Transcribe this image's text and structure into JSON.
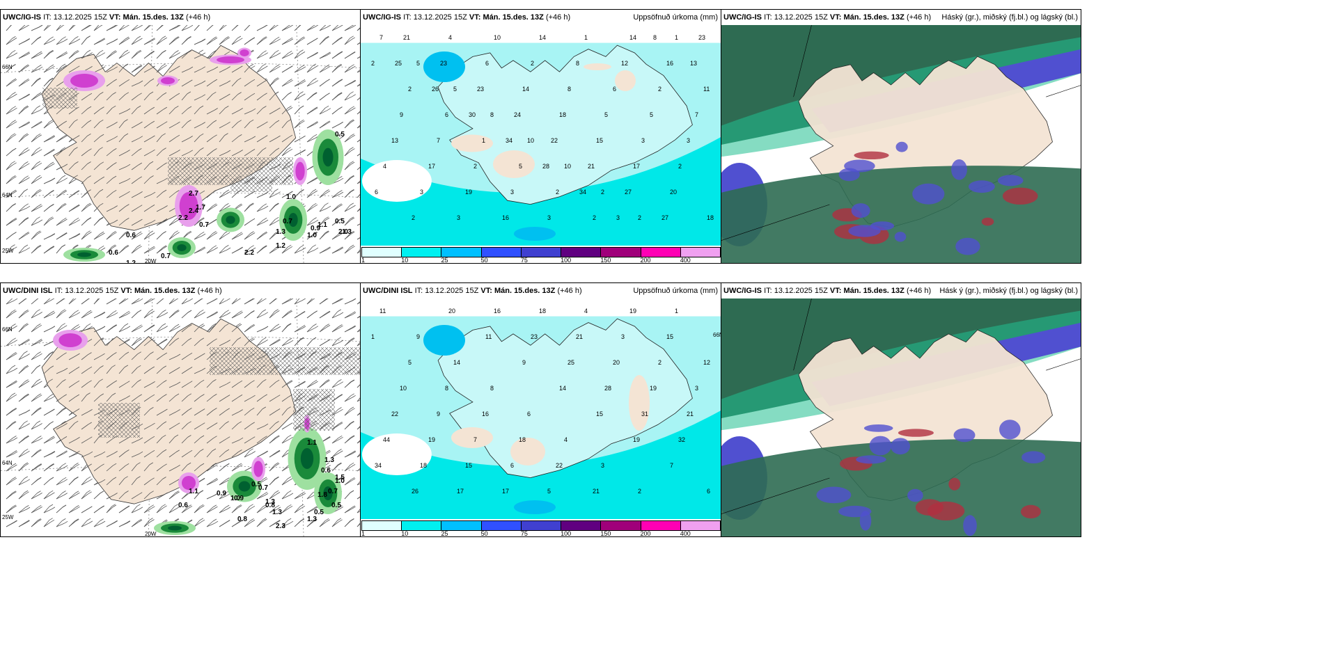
{
  "panels": [
    {
      "id": "p1",
      "model": "UWC/IG-IS",
      "it_label": "IT:",
      "it": "13.12.2025 15Z",
      "vt_label": "VT:",
      "vt": "Mán. 15.des. 13Z",
      "lead": "(+46 h)",
      "right": ""
    },
    {
      "id": "p2",
      "model": "UWC/IG-IS",
      "it_label": "IT:",
      "it": "13.12.2025 15Z",
      "vt_label": "VT:",
      "vt": "Mán. 15.des. 13Z",
      "lead": "(+46 h)",
      "right": "Uppsöfnuð úrkoma (mm)"
    },
    {
      "id": "p3",
      "model": "UWC/IG-IS",
      "it_label": "IT:",
      "it": "13.12.2025 15Z",
      "vt_label": "VT:",
      "vt": "Mán. 15.des. 13Z",
      "lead": "(+46 h)",
      "right": "Háský (gr.), miðský (fj.bl.) og lágský (bl.)"
    },
    {
      "id": "p4",
      "model": "UWC/DINI ISL",
      "it_label": "IT:",
      "it": "13.12.2025 15Z",
      "vt_label": "VT:",
      "vt": "Mán. 15.des. 13Z",
      "lead": "(+46 h)",
      "right": ""
    },
    {
      "id": "p5",
      "model": "UWC/DINI ISL",
      "it_label": "IT:",
      "it": "13.12.2025 15Z",
      "vt_label": "VT:",
      "vt": "Mán. 15.des. 13Z",
      "lead": "(+46 h)",
      "right": "Uppsöfnuð úrkoma (mm)"
    },
    {
      "id": "p6",
      "model": "UWC/IG-IS",
      "it_label": "IT:",
      "it": "13.12.2025 15Z",
      "vt_label": "VT:",
      "vt": "Mán. 15.des. 13Z",
      "lead": "(+46 h)",
      "right": "Hásk ý (gr.), miðský (fj.bl.) og lágský (bl.)"
    }
  ],
  "axis_labels": {
    "lat66": "66N",
    "lat64": "64N",
    "lon20": "20W",
    "lon25": "25W"
  },
  "colorbar": {
    "ticks": [
      "1",
      "10",
      "25",
      "50",
      "75",
      "100",
      "150",
      "200",
      "400"
    ],
    "colors": [
      "#e0ffff",
      "#00f0f0",
      "#00c0ff",
      "#3050ff",
      "#4040d0",
      "#600080",
      "#a0007a",
      "#ff00b4",
      "#f0a0f0"
    ]
  },
  "colors": {
    "land": "#f4e4d4",
    "precip_bg": "#a8f4f4",
    "precip_mid": "#00e8e8",
    "precip_hi": "#00c0f0",
    "snow": "#d040d0",
    "rain_green": "#006030",
    "high_cloud": "#2e6b52",
    "mid_cloud": "#5050d0",
    "low_cloud": "#20c090"
  },
  "precip_values_top": [
    "7",
    "5",
    "5",
    "8",
    "10",
    "10",
    "2",
    "2",
    "1",
    "2",
    "2",
    "6",
    "1",
    "5",
    "2",
    "2",
    "14",
    "16",
    "11",
    "9",
    "7",
    "2",
    "3",
    "3",
    "1",
    "12",
    "2",
    "7",
    "13",
    "17",
    "19",
    "16",
    "14",
    "8",
    "6",
    "5",
    "3",
    "4",
    "3",
    "3",
    "10",
    "2",
    "8",
    "5",
    "3",
    "2",
    "6",
    "2",
    "4",
    "6",
    "14",
    "18",
    "15",
    "17",
    "20",
    "18",
    "21",
    "23",
    "23",
    "24",
    "22",
    "21",
    "27",
    "27",
    "23",
    "25",
    "26",
    "30",
    "34",
    "28",
    "34",
    "3",
    "8",
    "13"
  ],
  "precip_values_bottom": [
    "11",
    "9",
    "14",
    "8",
    "6",
    "4",
    "3",
    "2",
    "1",
    "1",
    "5",
    "8",
    "16",
    "18",
    "22",
    "21",
    "19",
    "15",
    "12",
    "10",
    "9",
    "7",
    "6",
    "5",
    "4",
    "3",
    "2",
    "3",
    "22",
    "19",
    "15",
    "17",
    "18",
    "21",
    "20",
    "19",
    "21",
    "44",
    "18",
    "17",
    "16",
    "23",
    "25",
    "28",
    "31",
    "32",
    "34",
    "26",
    "20",
    "11",
    "9",
    "14",
    "15",
    "19",
    "7",
    "6"
  ],
  "wind_values_top": [
    "2.7",
    "2.2",
    "2.4",
    "1.7",
    "0.7",
    "0.6",
    "0.6",
    "0.7",
    "1.3",
    "1.2",
    "2.2",
    "1.0",
    "0.9",
    "1.1",
    "0.5",
    "0.5",
    "1.3",
    "1.0",
    "0.7",
    "2.0",
    "1.2"
  ],
  "wind_values_bottom": [
    "1.1",
    "0.9",
    "0.9",
    "0.6",
    "1.0",
    "0.7",
    "0.5",
    "1.3",
    "1.3",
    "2.3",
    "0.8",
    "1.3",
    "0.5",
    "1.8",
    "1.0",
    "0.7",
    "0.6",
    "1.3",
    "1.5",
    "0.5",
    "1.1",
    "0.8"
  ]
}
